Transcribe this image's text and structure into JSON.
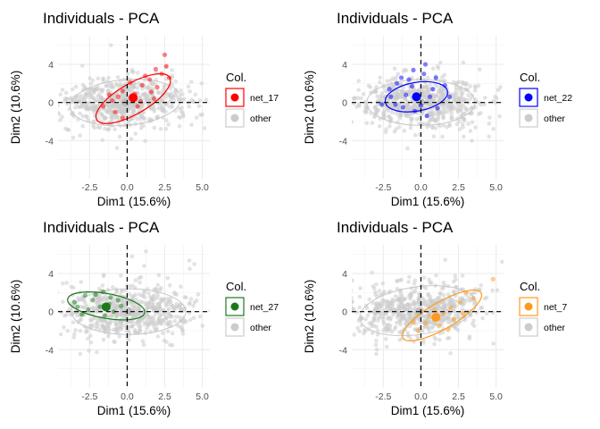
{
  "chart_data": [
    {
      "type": "scatter",
      "title": "Individuals - PCA",
      "xlabel": "Dim1 (15.6%)",
      "ylabel": "Dim2 (10.6%)",
      "xlim": [
        -4.6,
        5.5
      ],
      "ylim": [
        -8.0,
        7.0
      ],
      "x_ticks": [
        -2.5,
        0.0,
        2.5,
        5.0
      ],
      "x_tick_labels": [
        "-2.5",
        "0.0",
        "2.5",
        "5.0"
      ],
      "y_ticks": [
        -4,
        0,
        4
      ],
      "y_tick_labels": [
        "-4",
        "0",
        "4"
      ],
      "grid": true,
      "legend": {
        "title": "Col.",
        "position": "right",
        "entries": [
          "net_17",
          "other"
        ]
      },
      "highlight": {
        "name": "net_17",
        "color": "#ff0000",
        "centroid": [
          0.4,
          0.5
        ],
        "ellipse": {
          "cx": 0.4,
          "cy": 0.4,
          "rx": 2.8,
          "ry": 1.6,
          "angle_deg": 30
        },
        "points": [
          [
            2.5,
            5.0
          ],
          [
            1.9,
            3.5
          ],
          [
            2.3,
            3.0
          ],
          [
            1.5,
            2.4
          ],
          [
            1.0,
            1.8
          ],
          [
            2.8,
            2.6
          ],
          [
            0.5,
            0.9
          ],
          [
            -0.3,
            1.2
          ],
          [
            -1.0,
            0.2
          ],
          [
            -0.8,
            -1.0
          ],
          [
            -0.3,
            -1.6
          ],
          [
            0.9,
            0.1
          ],
          [
            1.6,
            1.1
          ],
          [
            0.2,
            2.1
          ],
          [
            -1.6,
            -0.4
          ],
          [
            2.0,
            1.6
          ],
          [
            1.2,
            2.8
          ],
          [
            -0.6,
            0.6
          ],
          [
            0.7,
            -0.4
          ],
          [
            2.6,
            3.8
          ],
          [
            -1.2,
            0.8
          ],
          [
            1.8,
            0.4
          ]
        ]
      },
      "other": {
        "name": "other",
        "color": "#cccccc",
        "centroid": [
          -0.1,
          0.0
        ],
        "ellipse": {
          "cx": -0.1,
          "cy": 0.0,
          "rx": 3.7,
          "ry": 2.4,
          "angle_deg": 5
        }
      }
    },
    {
      "type": "scatter",
      "title": "Individuals - PCA",
      "xlabel": "Dim1 (15.6%)",
      "ylabel": "Dim2 (10.6%)",
      "xlim": [
        -4.6,
        5.5
      ],
      "ylim": [
        -8.0,
        7.0
      ],
      "x_ticks": [
        -2.5,
        0.0,
        2.5,
        5.0
      ],
      "x_tick_labels": [
        "-2.5",
        "0.0",
        "2.5",
        "5.0"
      ],
      "y_ticks": [
        -4,
        0,
        4
      ],
      "y_tick_labels": [
        "-4",
        "0",
        "4"
      ],
      "grid": true,
      "legend": {
        "title": "Col.",
        "position": "right",
        "entries": [
          "net_22",
          "other"
        ]
      },
      "highlight": {
        "name": "net_22",
        "color": "#0000ff",
        "centroid": [
          -0.3,
          0.6
        ],
        "ellipse": {
          "cx": -0.3,
          "cy": 0.6,
          "rx": 2.1,
          "ry": 1.5,
          "angle_deg": 10
        },
        "points": [
          [
            0.3,
            4.0
          ],
          [
            -0.5,
            3.4
          ],
          [
            0.2,
            3.0
          ],
          [
            -1.3,
            2.6
          ],
          [
            1.0,
            2.6
          ],
          [
            -0.6,
            1.7
          ],
          [
            -2.1,
            1.4
          ],
          [
            1.6,
            1.8
          ],
          [
            -1.0,
            0.8
          ],
          [
            0.6,
            0.6
          ],
          [
            -2.6,
            -0.2
          ],
          [
            -1.2,
            -0.5
          ],
          [
            0.0,
            -0.3
          ],
          [
            1.1,
            -0.6
          ],
          [
            -0.4,
            -0.9
          ],
          [
            -2.0,
            0.6
          ],
          [
            0.8,
            1.4
          ],
          [
            -1.6,
            2.0
          ],
          [
            1.9,
            0.6
          ],
          [
            -0.8,
            2.4
          ],
          [
            0.4,
            -1.4
          ],
          [
            -1.7,
            -0.2
          ]
        ]
      },
      "other": {
        "name": "other",
        "color": "#cccccc",
        "centroid": [
          0.0,
          0.0
        ],
        "ellipse": {
          "cx": 0.0,
          "cy": 0.0,
          "rx": 3.6,
          "ry": 2.4,
          "angle_deg": 0
        }
      }
    },
    {
      "type": "scatter",
      "title": "Individuals - PCA",
      "xlabel": "Dim1 (15.6%)",
      "ylabel": "Dim2 (10.6%)",
      "xlim": [
        -4.6,
        5.5
      ],
      "ylim": [
        -8.0,
        7.0
      ],
      "x_ticks": [
        -2.5,
        0.0,
        2.5,
        5.0
      ],
      "x_tick_labels": [
        "-2.5",
        "0.0",
        "2.5",
        "5.0"
      ],
      "y_ticks": [
        -4,
        0,
        4
      ],
      "y_tick_labels": [
        "-4",
        "0",
        "4"
      ],
      "grid": true,
      "legend": {
        "title": "Col.",
        "position": "right",
        "entries": [
          "net_27",
          "other"
        ]
      },
      "highlight": {
        "name": "net_27",
        "color": "#1a7a1a",
        "centroid": [
          -1.4,
          0.5
        ],
        "ellipse": {
          "cx": -1.4,
          "cy": 0.6,
          "rx": 2.6,
          "ry": 1.3,
          "angle_deg": -10
        },
        "points": [
          [
            -1.6,
            2.1
          ],
          [
            -2.8,
            1.7
          ],
          [
            -2.3,
            1.2
          ],
          [
            -1.1,
            1.5
          ],
          [
            -3.5,
            1.0
          ],
          [
            -0.6,
            1.2
          ],
          [
            -1.8,
            0.5
          ],
          [
            -2.6,
            0.2
          ],
          [
            -0.9,
            0.0
          ],
          [
            -1.5,
            -0.4
          ],
          [
            -3.0,
            -0.3
          ],
          [
            -0.4,
            0.6
          ],
          [
            -2.1,
            1.8
          ],
          [
            -1.2,
            0.8
          ],
          [
            -3.3,
            0.5
          ]
        ]
      },
      "other": {
        "name": "other",
        "color": "#cccccc",
        "centroid": [
          0.1,
          0.0
        ],
        "ellipse": {
          "cx": 0.1,
          "cy": 0.0,
          "rx": 3.8,
          "ry": 2.4,
          "angle_deg": 0
        }
      }
    },
    {
      "type": "scatter",
      "title": "Individuals - PCA",
      "xlabel": "Dim1 (15.6%)",
      "ylabel": "Dim2 (10.6%)",
      "xlim": [
        -4.6,
        5.5
      ],
      "ylim": [
        -8.0,
        7.0
      ],
      "x_ticks": [
        -2.5,
        0.0,
        2.5,
        5.0
      ],
      "x_tick_labels": [
        "-2.5",
        "0.0",
        "2.5",
        "5.0"
      ],
      "y_ticks": [
        -4,
        0,
        4
      ],
      "y_tick_labels": [
        "-4",
        "0",
        "4"
      ],
      "grid": true,
      "legend": {
        "title": "Col.",
        "position": "right",
        "entries": [
          "net_7",
          "other"
        ]
      },
      "highlight": {
        "name": "net_7",
        "color": "#ff9a1a",
        "centroid": [
          1.0,
          -0.6
        ],
        "ellipse": {
          "cx": 1.4,
          "cy": -0.4,
          "rx": 3.0,
          "ry": 1.4,
          "angle_deg": 30
        },
        "points": [
          [
            4.8,
            3.4
          ],
          [
            3.0,
            2.0
          ],
          [
            2.6,
            1.0
          ],
          [
            2.0,
            0.4
          ],
          [
            1.5,
            -0.2
          ],
          [
            0.6,
            -0.5
          ],
          [
            0.3,
            -1.2
          ],
          [
            1.2,
            -1.5
          ],
          [
            -0.2,
            -2.0
          ],
          [
            2.2,
            -0.8
          ],
          [
            0.9,
            0.2
          ],
          [
            3.5,
            1.4
          ],
          [
            1.8,
            -1.9
          ],
          [
            -0.5,
            -1.1
          ],
          [
            2.8,
            -0.2
          ]
        ]
      },
      "other": {
        "name": "other",
        "color": "#cccccc",
        "centroid": [
          -0.1,
          0.0
        ],
        "ellipse": {
          "cx": -0.2,
          "cy": 0.1,
          "rx": 3.9,
          "ry": 2.5,
          "angle_deg": 8
        }
      }
    }
  ]
}
